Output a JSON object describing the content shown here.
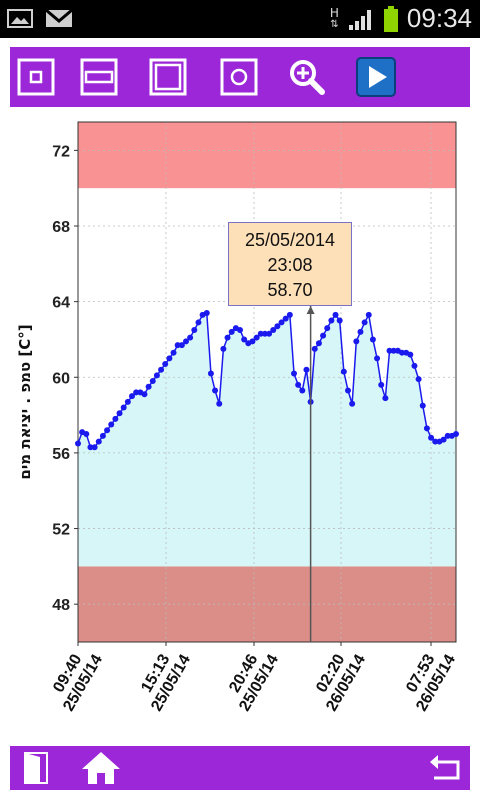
{
  "status_bar": {
    "time": "09:34",
    "network_label_top": "H",
    "icons": [
      "gallery-icon",
      "gmail-icon",
      "network-h-icon",
      "signal-icon",
      "battery-icon"
    ]
  },
  "toolbar": {
    "buttons": [
      "zoom-box-icon",
      "zoom-horizontal-icon",
      "zoom-full-icon",
      "zoom-circle-icon",
      "magnifier-icon",
      "play-icon"
    ]
  },
  "bottom_bar": {
    "buttons": [
      "exit-door-icon",
      "home-icon",
      "back-arrow-icon"
    ]
  },
  "colors": {
    "accent": "#9b27d8",
    "upper_band": "#f99292",
    "lower_band": "#db8e88",
    "fill": "#d7f6f7",
    "line": "#1a1aee",
    "tooltip_bg": "#fde0b8"
  },
  "tooltip": {
    "date": "25/05/2014",
    "time": "23:08",
    "value": "58.70"
  },
  "chart_data": {
    "type": "area",
    "ylabel": "טמפ . יציאת מים [C°]",
    "ylim": [
      46,
      73.5
    ],
    "yticks": [
      48,
      52,
      56,
      60,
      64,
      68,
      72
    ],
    "xtick_labels": [
      [
        "09:40",
        "25/05/14"
      ],
      [
        "15:13",
        "25/05/14"
      ],
      [
        "20:46",
        "25/05/14"
      ],
      [
        "02:20",
        "26/05/14"
      ],
      [
        "07:53",
        "26/05/14"
      ]
    ],
    "upper_limit_band": [
      70,
      73.5
    ],
    "lower_limit_band": [
      46,
      50
    ],
    "grid": true,
    "values": [
      56.5,
      57.1,
      57.0,
      56.3,
      56.3,
      56.6,
      56.9,
      57.2,
      57.5,
      57.8,
      58.1,
      58.4,
      58.7,
      59.0,
      59.2,
      59.2,
      59.1,
      59.5,
      59.8,
      60.1,
      60.4,
      60.7,
      61.0,
      61.3,
      61.7,
      61.7,
      61.9,
      62.1,
      62.5,
      62.9,
      63.3,
      63.4,
      60.2,
      59.3,
      58.6,
      61.5,
      62.1,
      62.4,
      62.6,
      62.5,
      62.0,
      61.8,
      61.9,
      62.1,
      62.3,
      62.3,
      62.3,
      62.5,
      62.7,
      62.9,
      63.1,
      63.3,
      60.2,
      59.6,
      59.3,
      60.4,
      58.7,
      61.5,
      61.8,
      62.2,
      62.6,
      63.0,
      63.3,
      63.0,
      60.3,
      59.3,
      58.6,
      61.9,
      62.4,
      62.9,
      63.3,
      62.0,
      61.0,
      59.6,
      58.9,
      61.4,
      61.4,
      61.4,
      61.3,
      61.3,
      61.2,
      60.6,
      59.9,
      58.5,
      57.3,
      56.8,
      56.6,
      56.6,
      56.7,
      56.9,
      56.9,
      57.0
    ],
    "cursor_index": 56
  }
}
